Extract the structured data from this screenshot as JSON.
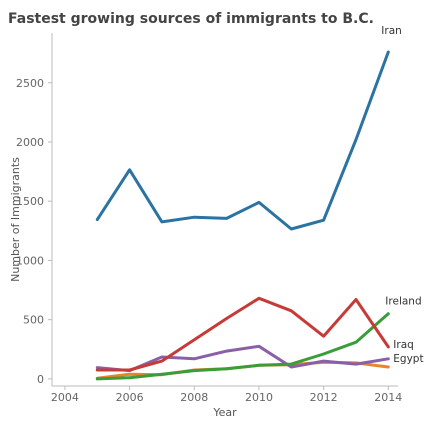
{
  "chart_data": {
    "type": "line",
    "title": "Fastest growing sources of immigrants to B.C.",
    "xlabel": "Year",
    "ylabel": "Number of Immigrants",
    "xlim": [
      2003.6,
      2014.3
    ],
    "ylim": [
      -60,
      2920
    ],
    "x_ticks": [
      2004,
      2006,
      2008,
      2010,
      2012,
      2014
    ],
    "y_ticks": [
      0,
      500,
      1000,
      1500,
      2000,
      2500
    ],
    "grid": false,
    "legend": "none (series labeled at line ends)",
    "x": [
      2005,
      2006,
      2007,
      2008,
      2009,
      2010,
      2011,
      2012,
      2013,
      2014
    ],
    "series": [
      {
        "name": "Iran",
        "color": "#2b73a2",
        "values": [
          1345,
          1765,
          1325,
          1365,
          1355,
          1490,
          1265,
          1340,
          2020,
          2760
        ]
      },
      {
        "name": "Ireland",
        "color": "#3a9d3a",
        "values": [
          0,
          10,
          40,
          70,
          85,
          115,
          125,
          210,
          310,
          550
        ]
      },
      {
        "name": "Iraq",
        "color": "#c63b37",
        "values": [
          75,
          75,
          150,
          330,
          510,
          680,
          575,
          360,
          670,
          270
        ]
      },
      {
        "name": "",
        "color": "#8b5fa8",
        "values": [
          95,
          70,
          185,
          170,
          235,
          275,
          100,
          150,
          125,
          170
        ]
      },
      {
        "name": "Egypt",
        "color": "#e8842a",
        "values": [
          5,
          40,
          35,
          75,
          85,
          115,
          120,
          140,
          135,
          100
        ]
      }
    ]
  }
}
